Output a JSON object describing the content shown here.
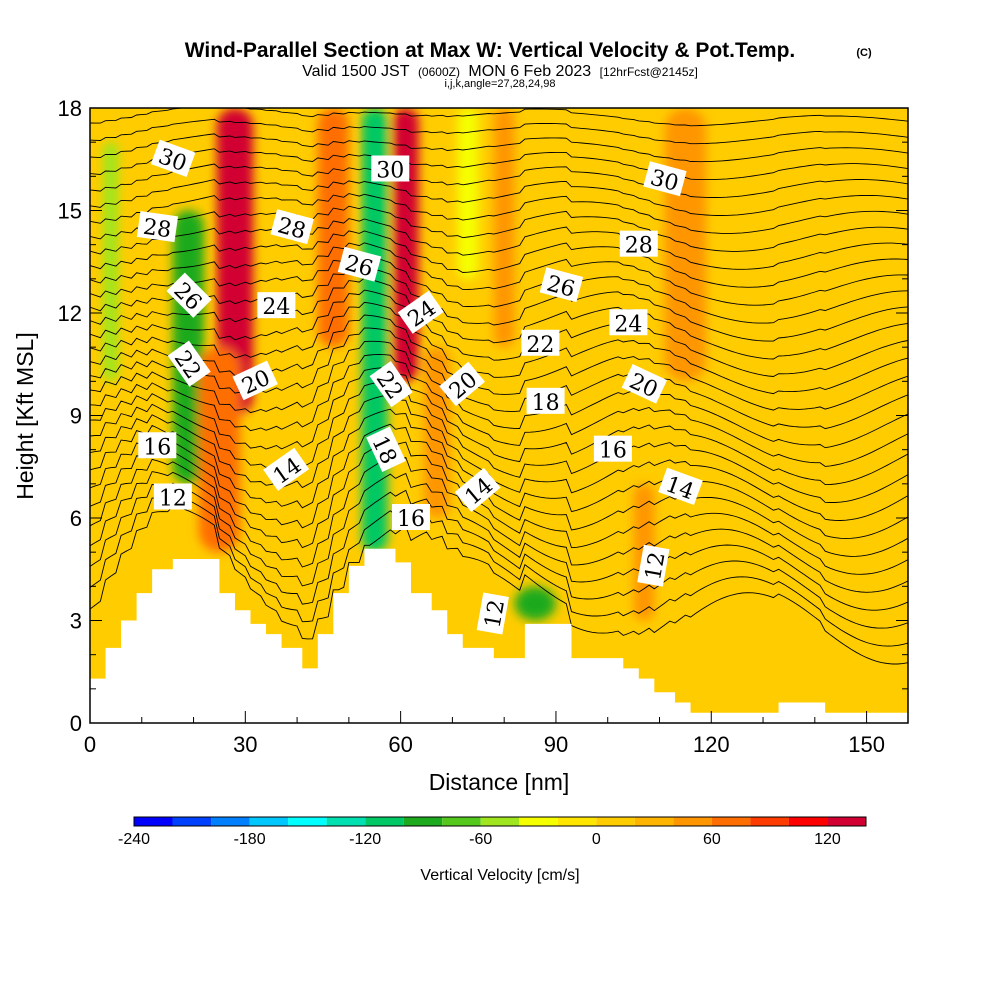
{
  "title": "Wind-Parallel Section at Max W: Vertical Velocity & Pot.Temp.",
  "copyright": "(C)",
  "subtitle": {
    "valid": "Valid 1500 JST",
    "zulu": "(0600Z)",
    "date": "MON 6 Feb 2023",
    "forecast": "[12hrFcst@2145z]"
  },
  "indices": "i,j,k,angle=27,28,24,98",
  "chart_data": {
    "type": "heatmap",
    "title": "Wind-Parallel Section at Max W: Vertical Velocity & Pot.Temp.",
    "xlabel": "Distance [nm]",
    "ylabel": "Height [Kft MSL]",
    "xlim": [
      0,
      158
    ],
    "ylim": [
      0,
      18
    ],
    "x_ticks": [
      0,
      30,
      60,
      90,
      120,
      150
    ],
    "y_ticks": [
      0,
      3,
      6,
      9,
      12,
      15,
      18
    ],
    "colorbar": {
      "label": "Vertical Velocity [cm/s]",
      "min": -240,
      "max": 140,
      "step": 20,
      "tick_values": [
        -240,
        -180,
        -120,
        -60,
        0,
        60,
        120
      ],
      "colors": [
        "#0000ff",
        "#0040ff",
        "#0080ff",
        "#00c8ff",
        "#00ffff",
        "#00e0b0",
        "#00c864",
        "#1eaa1e",
        "#55c81e",
        "#a0e61e",
        "#f5ff00",
        "#ffe600",
        "#ffcc00",
        "#ffb400",
        "#ff9600",
        "#ff6e00",
        "#ff3c00",
        "#ff0000",
        "#d20032",
        "#a00050",
        "#781e78"
      ]
    },
    "w_bands": [
      {
        "x_center": 4,
        "x_width": 3,
        "y_top": 17,
        "y_bottom": 10,
        "w": -60
      },
      {
        "x_center": 19,
        "x_width": 6,
        "y_top": 15,
        "y_bottom": 7,
        "w": -90
      },
      {
        "x_center": 28,
        "x_width": 7,
        "y_top": 18,
        "y_bottom": 9,
        "w": 130
      },
      {
        "x_center": 25,
        "x_width": 8,
        "y_top": 11,
        "y_bottom": 5,
        "w": 70
      },
      {
        "x_center": 47,
        "x_width": 6,
        "y_top": 18,
        "y_bottom": 11,
        "w": 60
      },
      {
        "x_center": 55,
        "x_width": 5,
        "y_top": 18,
        "y_bottom": 5,
        "w": -120
      },
      {
        "x_center": 61,
        "x_width": 5,
        "y_top": 18,
        "y_bottom": 10,
        "w": 130
      },
      {
        "x_center": 67,
        "x_width": 5,
        "y_top": 11,
        "y_bottom": 6,
        "w": 40
      },
      {
        "x_center": 73,
        "x_width": 4,
        "y_top": 18,
        "y_bottom": 13,
        "w": -40
      },
      {
        "x_center": 80,
        "x_width": 4,
        "y_top": 18,
        "y_bottom": 11,
        "w": 40
      },
      {
        "x_center": 86,
        "x_width": 8,
        "y_top": 4,
        "y_bottom": 3,
        "w": -90
      },
      {
        "x_center": 115,
        "x_width": 8,
        "y_top": 18,
        "y_bottom": 10,
        "w": 50
      },
      {
        "x_center": 107,
        "x_width": 4,
        "y_top": 7,
        "y_bottom": 3,
        "w": 40
      }
    ],
    "terrain": [
      [
        0,
        1.3
      ],
      [
        3,
        1.3
      ],
      [
        3,
        2.2
      ],
      [
        6,
        2.2
      ],
      [
        6,
        3.0
      ],
      [
        9,
        3.0
      ],
      [
        9,
        3.8
      ],
      [
        12,
        3.8
      ],
      [
        12,
        4.5
      ],
      [
        16,
        4.5
      ],
      [
        16,
        4.8
      ],
      [
        25,
        4.8
      ],
      [
        25,
        3.8
      ],
      [
        28,
        3.8
      ],
      [
        28,
        3.3
      ],
      [
        31,
        3.3
      ],
      [
        31,
        2.9
      ],
      [
        34,
        2.9
      ],
      [
        34,
        2.6
      ],
      [
        37,
        2.6
      ],
      [
        37,
        2.2
      ],
      [
        41,
        2.2
      ],
      [
        41,
        1.6
      ],
      [
        44,
        1.6
      ],
      [
        44,
        2.6
      ],
      [
        47,
        2.6
      ],
      [
        47,
        3.8
      ],
      [
        50,
        3.8
      ],
      [
        50,
        4.6
      ],
      [
        53,
        4.6
      ],
      [
        53,
        5.1
      ],
      [
        59,
        5.1
      ],
      [
        59,
        4.7
      ],
      [
        62,
        4.7
      ],
      [
        62,
        3.8
      ],
      [
        66,
        3.8
      ],
      [
        66,
        3.3
      ],
      [
        69,
        3.3
      ],
      [
        69,
        2.6
      ],
      [
        72,
        2.6
      ],
      [
        72,
        2.2
      ],
      [
        78,
        2.2
      ],
      [
        78,
        1.9
      ],
      [
        84,
        1.9
      ],
      [
        84,
        2.9
      ],
      [
        93,
        2.9
      ],
      [
        93,
        1.9
      ],
      [
        103,
        1.9
      ],
      [
        103,
        1.6
      ],
      [
        106,
        1.6
      ],
      [
        106,
        1.3
      ],
      [
        109,
        1.3
      ],
      [
        109,
        0.9
      ],
      [
        113,
        0.9
      ],
      [
        113,
        0.6
      ],
      [
        116,
        0.6
      ],
      [
        116,
        0.3
      ],
      [
        133,
        0.3
      ],
      [
        133,
        0.6
      ],
      [
        142,
        0.6
      ],
      [
        142,
        0.3
      ],
      [
        158,
        0.3
      ]
    ],
    "theta_contours": [
      12,
      14,
      16,
      18,
      20,
      22,
      24,
      26,
      28,
      30
    ],
    "contour_labels": [
      {
        "text": "30",
        "x": 16,
        "y": 16.5,
        "angle": 20
      },
      {
        "text": "28",
        "x": 13,
        "y": 14.5,
        "angle": 8
      },
      {
        "text": "26",
        "x": 19,
        "y": 12.5,
        "angle": 45
      },
      {
        "text": "22",
        "x": 19,
        "y": 10.5,
        "angle": 55
      },
      {
        "text": "16",
        "x": 13,
        "y": 8.1,
        "angle": 0
      },
      {
        "text": "12",
        "x": 16,
        "y": 6.6,
        "angle": 0
      },
      {
        "text": "28",
        "x": 39,
        "y": 14.5,
        "angle": 15
      },
      {
        "text": "24",
        "x": 36,
        "y": 12.2,
        "angle": 0
      },
      {
        "text": "20",
        "x": 32,
        "y": 10.0,
        "angle": -25
      },
      {
        "text": "14",
        "x": 38,
        "y": 7.4,
        "angle": -35
      },
      {
        "text": "30",
        "x": 58,
        "y": 16.2,
        "angle": 0
      },
      {
        "text": "26",
        "x": 52,
        "y": 13.4,
        "angle": 15
      },
      {
        "text": "24",
        "x": 64,
        "y": 12.0,
        "angle": -35
      },
      {
        "text": "22",
        "x": 58,
        "y": 9.9,
        "angle": 55
      },
      {
        "text": "20",
        "x": 72,
        "y": 9.9,
        "angle": -40
      },
      {
        "text": "18",
        "x": 57,
        "y": 8.0,
        "angle": 65
      },
      {
        "text": "16",
        "x": 62,
        "y": 6.0,
        "angle": 0
      },
      {
        "text": "14",
        "x": 75,
        "y": 6.8,
        "angle": -40
      },
      {
        "text": "12",
        "x": 78,
        "y": 3.2,
        "angle": -80
      },
      {
        "text": "26",
        "x": 91,
        "y": 12.8,
        "angle": 15
      },
      {
        "text": "22",
        "x": 87,
        "y": 11.1,
        "angle": 0
      },
      {
        "text": "18",
        "x": 88,
        "y": 9.4,
        "angle": 0
      },
      {
        "text": "30",
        "x": 111,
        "y": 15.9,
        "angle": 15
      },
      {
        "text": "28",
        "x": 106,
        "y": 14.0,
        "angle": 0
      },
      {
        "text": "24",
        "x": 104,
        "y": 11.7,
        "angle": 0
      },
      {
        "text": "20",
        "x": 107,
        "y": 9.9,
        "angle": 25
      },
      {
        "text": "16",
        "x": 101,
        "y": 8.0,
        "angle": 0
      },
      {
        "text": "14",
        "x": 114,
        "y": 6.9,
        "angle": 20
      },
      {
        "text": "12",
        "x": 109,
        "y": 4.6,
        "angle": -80
      }
    ]
  }
}
